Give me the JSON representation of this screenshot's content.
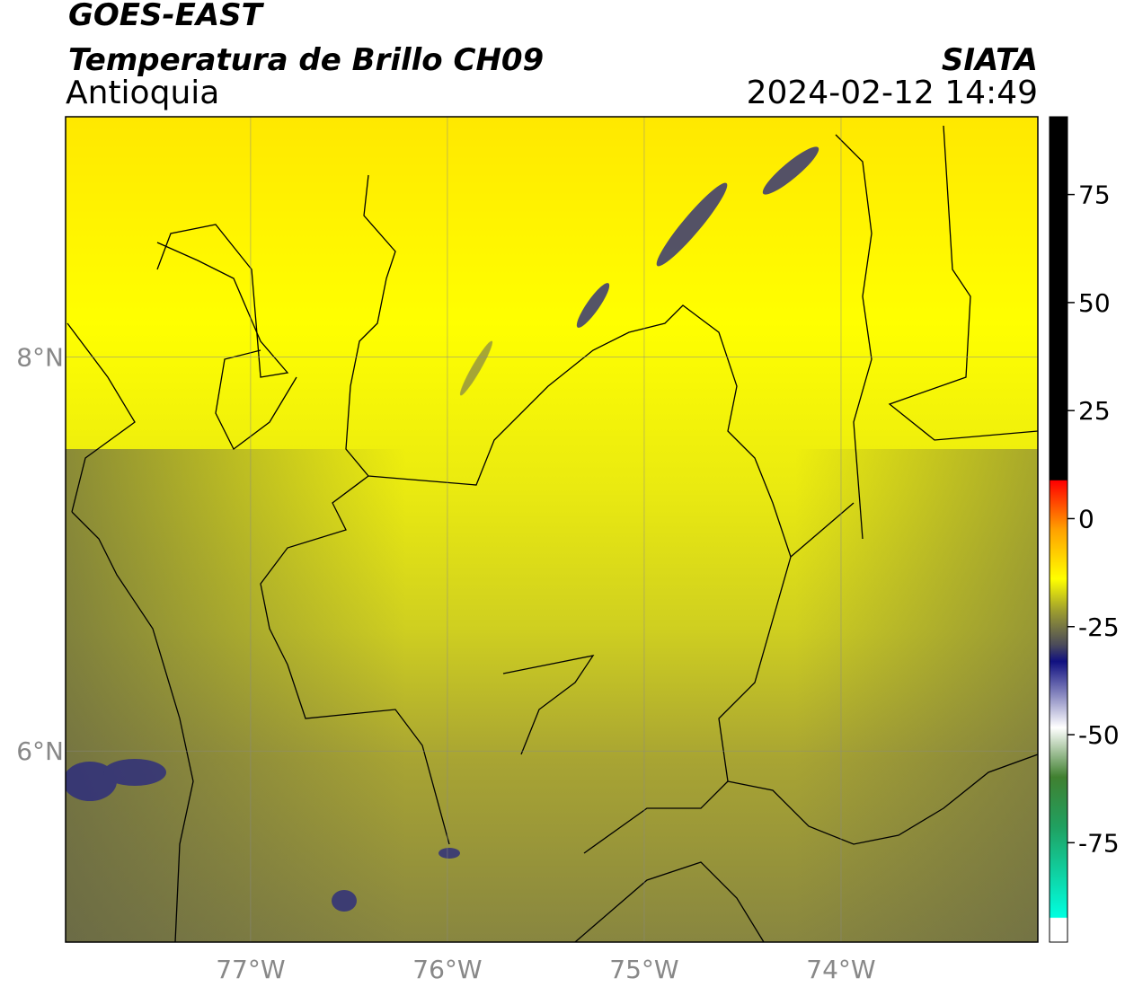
{
  "header": {
    "satellite": "GOES-EAST",
    "title": "Temperatura de Brillo CH09",
    "region": "Antioquia",
    "source": "SIATA",
    "datetime": "2024-02-12 14:49"
  },
  "map": {
    "xlim": [
      -77.94,
      -73.0
    ],
    "ylim": [
      5.03,
      9.22
    ],
    "xticks": [
      {
        "value": -77,
        "label": "77°W"
      },
      {
        "value": -76,
        "label": "76°W"
      },
      {
        "value": -75,
        "label": "75°W"
      },
      {
        "value": -74,
        "label": "74°W"
      }
    ],
    "yticks": [
      {
        "value": 6,
        "label": "6°N"
      },
      {
        "value": 8,
        "label": "8°N"
      }
    ],
    "grid": true
  },
  "colorbar": {
    "lim": [
      -98,
      93
    ],
    "ticks": [
      75,
      50,
      25,
      0,
      -25,
      -50,
      -75
    ]
  }
}
